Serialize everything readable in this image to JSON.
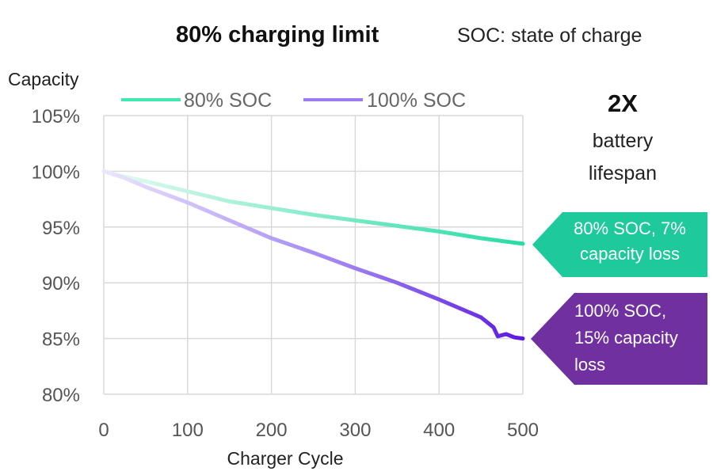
{
  "chart_data": {
    "type": "line",
    "title": "80% charging limit",
    "subtitle": "SOC: state of charge",
    "ylabel": "Capacity",
    "xlabel": "Charger Cycle",
    "xlim": [
      0,
      500
    ],
    "ylim": [
      80,
      105
    ],
    "x_ticks": [
      "0",
      "100",
      "200",
      "300",
      "400",
      "500"
    ],
    "y_ticks": [
      "80%",
      "85%",
      "90%",
      "95%",
      "100%",
      "105%"
    ],
    "grid": true,
    "legend_position": "top",
    "series": [
      {
        "name": "80% SOC",
        "color": "#3ee8b0",
        "points": [
          [
            0,
            100
          ],
          [
            20,
            99.6
          ],
          [
            50,
            99.1
          ],
          [
            100,
            98.2
          ],
          [
            150,
            97.3
          ],
          [
            200,
            96.7
          ],
          [
            250,
            96.1
          ],
          [
            300,
            95.6
          ],
          [
            350,
            95.1
          ],
          [
            400,
            94.6
          ],
          [
            450,
            94.0
          ],
          [
            500,
            93.5
          ]
        ]
      },
      {
        "name": "100% SOC",
        "color": "#9a7cf0",
        "points": [
          [
            0,
            100
          ],
          [
            25,
            99.4
          ],
          [
            50,
            98.6
          ],
          [
            100,
            97.2
          ],
          [
            150,
            95.6
          ],
          [
            200,
            94.0
          ],
          [
            250,
            92.7
          ],
          [
            300,
            91.3
          ],
          [
            335,
            90.4
          ],
          [
            350,
            90.0
          ],
          [
            400,
            88.5
          ],
          [
            450,
            86.9
          ],
          [
            465,
            86.0
          ],
          [
            470,
            85.2
          ],
          [
            480,
            85.4
          ],
          [
            490,
            85.1
          ],
          [
            500,
            85.0
          ]
        ]
      }
    ],
    "annotations": {
      "highlight_big": "2X",
      "highlight_line1": "battery",
      "highlight_line2": "lifespan",
      "callout_80": {
        "color": "#1ec99c",
        "lines": [
          "80% SOC, 7%",
          "capacity loss"
        ]
      },
      "callout_100": {
        "color": "#7030a0",
        "lines": [
          "100% SOC,",
          "15% capacity",
          "loss"
        ]
      }
    }
  }
}
